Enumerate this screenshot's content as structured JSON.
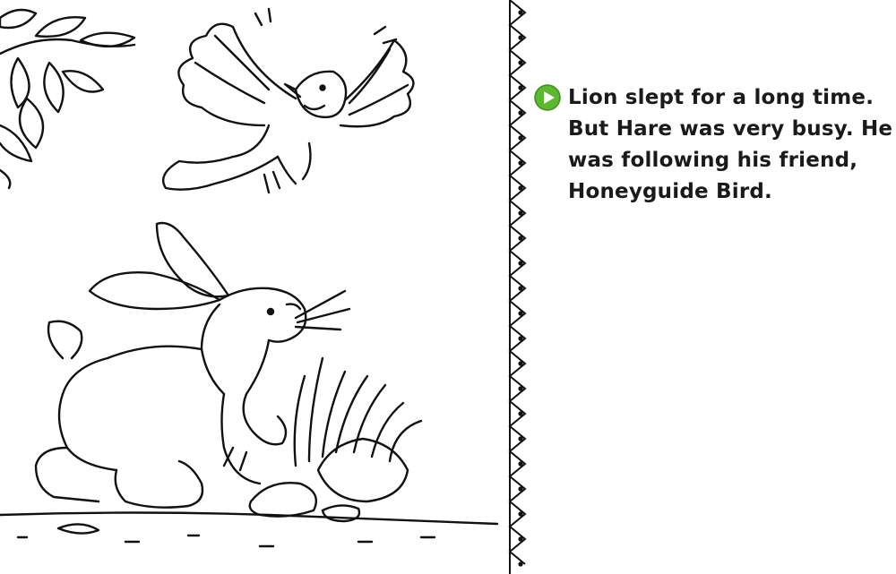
{
  "page": {
    "icons": {
      "play": "play-circle-icon",
      "illustration": "hare-and-bird-illustration",
      "border": "zigzag-border"
    },
    "colors": {
      "play_button": "#5cb82e",
      "play_button_dark": "#3f8f1e",
      "text": "#1a1a1a",
      "line_art": "#111111"
    },
    "story": {
      "lines": [
        "Lion slept for a long time.",
        "But Hare was very busy. He",
        "was following his friend,",
        "Honeyguide Bird."
      ]
    }
  }
}
